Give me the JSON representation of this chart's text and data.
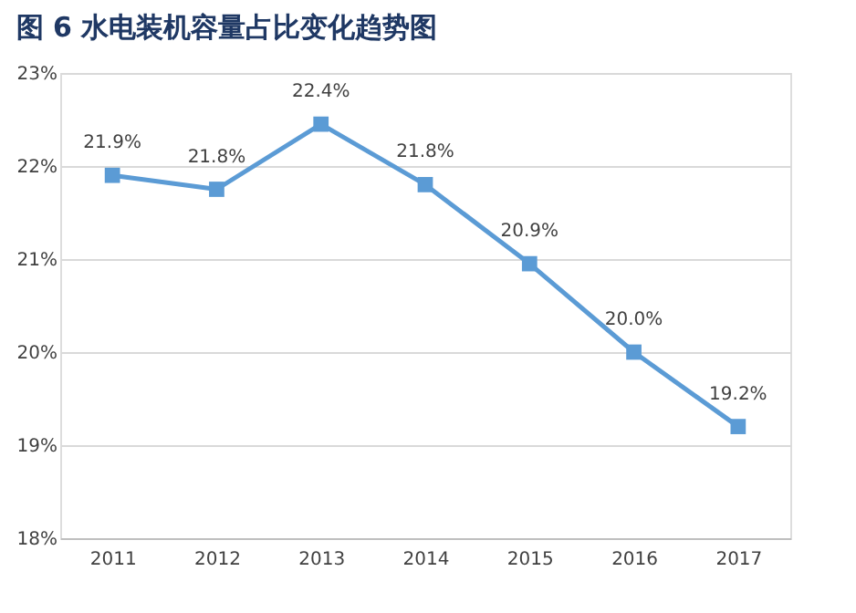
{
  "chart_data": {
    "type": "line",
    "title": "图 6  水电装机容量占比变化趋势图",
    "categories": [
      "2011",
      "2012",
      "2013",
      "2014",
      "2015",
      "2016",
      "2017"
    ],
    "series": [
      {
        "color": "#5b9bd5",
        "values": [
          21.9,
          21.75,
          22.45,
          21.8,
          20.95,
          20.0,
          19.2
        ],
        "value_labels": [
          "21.9%",
          "21.8%",
          "22.4%",
          "21.8%",
          "20.9%",
          "20.0%",
          "19.2%"
        ]
      }
    ],
    "ylim": [
      18,
      23
    ],
    "yticks": [
      {
        "value": 18,
        "label": "18%"
      },
      {
        "value": 19,
        "label": "19%"
      },
      {
        "value": 20,
        "label": "20%"
      },
      {
        "value": 21,
        "label": "21%"
      },
      {
        "value": 22,
        "label": "22%"
      },
      {
        "value": 23,
        "label": "23%"
      }
    ],
    "grid": "y",
    "marker": "square",
    "line_style": "solid"
  }
}
